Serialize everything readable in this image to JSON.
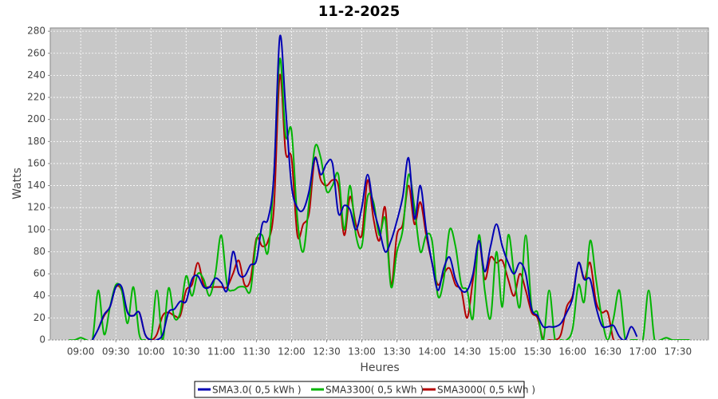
{
  "chart_data": {
    "type": "line",
    "title": "11-2-2025",
    "x_label": "Heures",
    "y_label": "Watts",
    "x": [
      530,
      535,
      540,
      545,
      550,
      555,
      560,
      565,
      570,
      575,
      580,
      585,
      590,
      595,
      600,
      605,
      610,
      615,
      620,
      625,
      630,
      635,
      640,
      645,
      650,
      655,
      660,
      665,
      670,
      675,
      680,
      685,
      690,
      695,
      700,
      705,
      710,
      715,
      720,
      725,
      730,
      735,
      740,
      745,
      750,
      755,
      760,
      765,
      770,
      775,
      780,
      785,
      790,
      795,
      800,
      805,
      810,
      815,
      820,
      825,
      830,
      835,
      840,
      845,
      850,
      855,
      860,
      865,
      870,
      875,
      880,
      885,
      890,
      895,
      900,
      905,
      910,
      915,
      920,
      925,
      930,
      935,
      940,
      945,
      950,
      955,
      960,
      965,
      970,
      975,
      980,
      985,
      990,
      995,
      1000,
      1005,
      1010,
      1015,
      1020,
      1025,
      1030,
      1035,
      1040,
      1045,
      1050,
      1055,
      1060
    ],
    "series": [
      {
        "name": "SMA3.0( 0,5 kWh )",
        "color": "#0000b4",
        "values": [
          null,
          null,
          null,
          null,
          0,
          10,
          23,
          30,
          48,
          48,
          25,
          22,
          25,
          5,
          0,
          0,
          5,
          25,
          28,
          35,
          35,
          55,
          58,
          48,
          48,
          56,
          52,
          45,
          80,
          60,
          58,
          68,
          72,
          105,
          110,
          150,
          275,
          210,
          140,
          120,
          118,
          135,
          165,
          150,
          160,
          160,
          115,
          122,
          118,
          100,
          120,
          150,
          120,
          100,
          80,
          90,
          108,
          130,
          165,
          110,
          140,
          100,
          70,
          45,
          65,
          75,
          55,
          45,
          45,
          60,
          90,
          62,
          85,
          105,
          85,
          70,
          60,
          70,
          60,
          28,
          22,
          12,
          12,
          12,
          15,
          25,
          38,
          70,
          55,
          55,
          30,
          13,
          12,
          13,
          3,
          0,
          12,
          3,
          null,
          null,
          null,
          null,
          null,
          null,
          null,
          null,
          null
        ]
      },
      {
        "name": "SMA3300( 0,5 kWh )",
        "color": "#00b400",
        "values": [
          0,
          0,
          2,
          0,
          0,
          45,
          5,
          30,
          50,
          45,
          15,
          48,
          5,
          0,
          0,
          45,
          0,
          47,
          20,
          25,
          58,
          40,
          60,
          55,
          40,
          60,
          95,
          50,
          45,
          48,
          48,
          45,
          90,
          95,
          80,
          150,
          255,
          185,
          190,
          110,
          80,
          125,
          175,
          165,
          135,
          140,
          150,
          100,
          140,
          95,
          85,
          130,
          125,
          95,
          110,
          48,
          80,
          100,
          150,
          120,
          80,
          95,
          90,
          40,
          55,
          100,
          85,
          50,
          45,
          20,
          95,
          45,
          20,
          80,
          30,
          95,
          60,
          30,
          95,
          30,
          25,
          0,
          45,
          0,
          0,
          0,
          10,
          50,
          35,
          90,
          55,
          20,
          0,
          20,
          45,
          0,
          0,
          0,
          0,
          45,
          0,
          0,
          2,
          0,
          0,
          0,
          0
        ]
      },
      {
        "name": "SMA3000( 0,5 kWh )",
        "color": "#b40000",
        "values": [
          null,
          null,
          null,
          null,
          null,
          10,
          22,
          30,
          48,
          45,
          25,
          22,
          25,
          5,
          0,
          5,
          22,
          25,
          22,
          22,
          45,
          50,
          70,
          50,
          48,
          48,
          48,
          48,
          60,
          72,
          50,
          55,
          92,
          85,
          90,
          120,
          240,
          170,
          165,
          95,
          105,
          115,
          165,
          145,
          140,
          145,
          140,
          95,
          130,
          105,
          95,
          145,
          110,
          90,
          120,
          50,
          95,
          105,
          140,
          105,
          125,
          95,
          70,
          50,
          60,
          65,
          50,
          45,
          20,
          55,
          90,
          55,
          75,
          70,
          72,
          55,
          40,
          60,
          45,
          25,
          20,
          0,
          0,
          0,
          5,
          30,
          40,
          70,
          55,
          70,
          35,
          25,
          25,
          0,
          0,
          null,
          null,
          null,
          null,
          null,
          null,
          null,
          null,
          null,
          null,
          null,
          null
        ]
      }
    ],
    "xlim": [
      514,
      1076
    ],
    "ylim": [
      0,
      283
    ],
    "xticks": [
      {
        "value": 540,
        "label": "09:00"
      },
      {
        "value": 570,
        "label": "09:30"
      },
      {
        "value": 600,
        "label": "10:00"
      },
      {
        "value": 630,
        "label": "10:30"
      },
      {
        "value": 660,
        "label": "11:00"
      },
      {
        "value": 690,
        "label": "11:30"
      },
      {
        "value": 720,
        "label": "12:00"
      },
      {
        "value": 750,
        "label": "12:30"
      },
      {
        "value": 780,
        "label": "13:00"
      },
      {
        "value": 810,
        "label": "13:30"
      },
      {
        "value": 840,
        "label": "14:00"
      },
      {
        "value": 870,
        "label": "14:30"
      },
      {
        "value": 900,
        "label": "15:00"
      },
      {
        "value": 930,
        "label": "15:30"
      },
      {
        "value": 960,
        "label": "16:00"
      },
      {
        "value": 990,
        "label": "16:30"
      },
      {
        "value": 1020,
        "label": "17:00"
      },
      {
        "value": 1050,
        "label": "17:30"
      }
    ],
    "yticks": [
      0,
      20,
      40,
      60,
      80,
      100,
      120,
      140,
      160,
      180,
      200,
      220,
      240,
      260,
      280
    ],
    "grid": true,
    "legend": "bottom"
  }
}
